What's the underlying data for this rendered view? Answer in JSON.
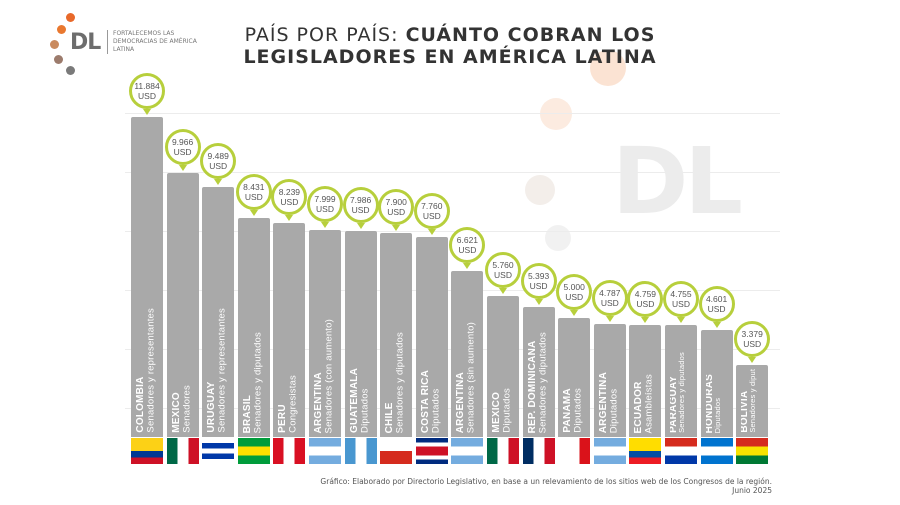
{
  "logo": {
    "text": "DL",
    "tagline": "FORTALECEMOS LAS DEMOCRACIAS DE AMÉRICA LATINA",
    "watermark": "DL",
    "dot_colors": [
      "#e8692a",
      "#e9782f",
      "#c98a5e",
      "#9c7b6c",
      "#7a7a7a"
    ]
  },
  "title": {
    "light": "PAÍS POR PAÍS:",
    "bold_line1": "CUÁNTO COBRAN LOS",
    "line2": "LEGISLADORES EN AMÉRICA LATINA"
  },
  "footer": {
    "line1": "Gráfico: Elaborado por Directorio Legislativo, en base a un relevamiento de los sitios web de los Congresos de la región.",
    "line2": "Junio 2025"
  },
  "chart_data": {
    "type": "bar",
    "unit": "USD",
    "bar_color": "#a9a9a9",
    "bubble_color": "#b7cf3c",
    "categories": [
      "COLOMBIA",
      "MÉXICO",
      "URUGUAY",
      "BRASIL",
      "PERÚ",
      "ARGENTINA",
      "GUATEMALA",
      "CHILE",
      "COSTA RICA",
      "ARGENTINA",
      "MÉXICO",
      "REP. DOMINICANA",
      "PANAMÁ",
      "ARGENTINA",
      "ECUADOR",
      "PARAGUAY",
      "HONDURAS",
      "BOLIVIA"
    ],
    "subtitles": [
      "Senadores y representantes",
      "Senadores",
      "Senadores y representantes",
      "Senadores y diputados",
      "Congresistas",
      "Senadores (con aumento)",
      "Diputados",
      "Senadores y diputados",
      "Diputados",
      "Senadores (sin aumento)",
      "Diputados",
      "Senadores y diputados",
      "Diputados",
      "Diputados",
      "Asambleístas",
      "Senadores y diputados",
      "Diputados",
      "Senadores y diputados"
    ],
    "value_labels": [
      "11.884",
      "9.966",
      "9.489",
      "8.431",
      "8.239",
      "7.999",
      "7.986",
      "7.900",
      "7.760",
      "6.621",
      "5.760",
      "5.393",
      "5.000",
      "4.787",
      "4.759",
      "4.755",
      "4.601",
      "3.379"
    ],
    "values": [
      11884,
      9966,
      9489,
      8431,
      8239,
      7999,
      7986,
      7900,
      7760,
      6621,
      5760,
      5393,
      5000,
      4787,
      4759,
      4755,
      4601,
      3379
    ],
    "flags": [
      {
        "dir": "h",
        "stripes": [
          "#fcd116",
          "#fcd116",
          "#003893",
          "#ce1126"
        ]
      },
      {
        "dir": "v",
        "stripes": [
          "#006847",
          "#ffffff",
          "#ce1126"
        ]
      },
      {
        "dir": "h",
        "stripes": [
          "#ffffff",
          "#0038a8",
          "#ffffff",
          "#0038a8",
          "#ffffff"
        ]
      },
      {
        "dir": "h",
        "stripes": [
          "#009c3b",
          "#ffdf00",
          "#009c3b"
        ]
      },
      {
        "dir": "v",
        "stripes": [
          "#d91023",
          "#ffffff",
          "#d91023"
        ]
      },
      {
        "dir": "h",
        "stripes": [
          "#74acdf",
          "#ffffff",
          "#74acdf"
        ]
      },
      {
        "dir": "v",
        "stripes": [
          "#4997d0",
          "#ffffff",
          "#4997d0"
        ]
      },
      {
        "dir": "h",
        "stripes": [
          "#ffffff",
          "#d52b1e"
        ]
      },
      {
        "dir": "h",
        "stripes": [
          "#002b7f",
          "#ffffff",
          "#ce1126",
          "#ce1126",
          "#ffffff",
          "#002b7f"
        ]
      },
      {
        "dir": "h",
        "stripes": [
          "#74acdf",
          "#ffffff",
          "#74acdf"
        ]
      },
      {
        "dir": "v",
        "stripes": [
          "#006847",
          "#ffffff",
          "#ce1126"
        ]
      },
      {
        "dir": "v",
        "stripes": [
          "#002d62",
          "#ffffff",
          "#ce1126"
        ]
      },
      {
        "dir": "v",
        "stripes": [
          "#ffffff",
          "#ffffff",
          "#da121a"
        ]
      },
      {
        "dir": "h",
        "stripes": [
          "#74acdf",
          "#ffffff",
          "#74acdf"
        ]
      },
      {
        "dir": "h",
        "stripes": [
          "#ffdd00",
          "#ffdd00",
          "#034ea2",
          "#ed1c24"
        ]
      },
      {
        "dir": "h",
        "stripes": [
          "#d52b1e",
          "#ffffff",
          "#0038a8"
        ]
      },
      {
        "dir": "h",
        "stripes": [
          "#0073cf",
          "#ffffff",
          "#0073cf"
        ]
      },
      {
        "dir": "h",
        "stripes": [
          "#d52b1e",
          "#f9e300",
          "#007934"
        ]
      }
    ]
  }
}
